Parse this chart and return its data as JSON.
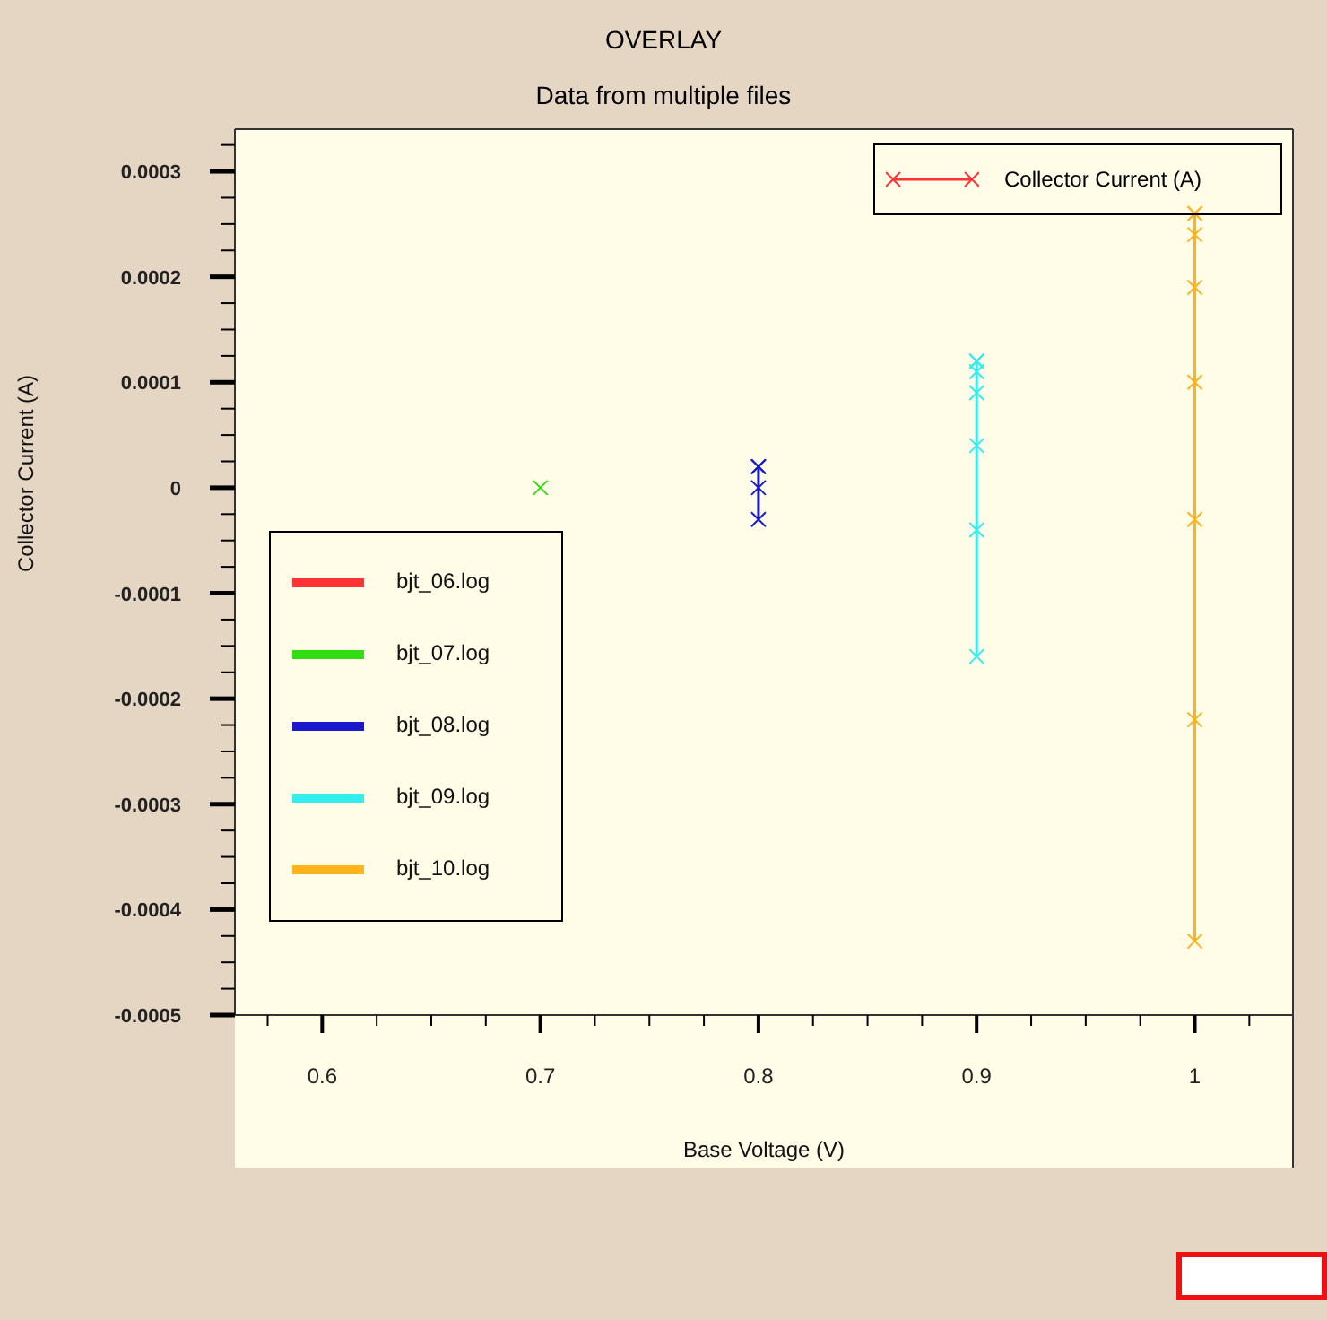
{
  "chart_data": {
    "type": "line",
    "title": "OVERLAY",
    "subtitle": "Data from multiple files",
    "xlabel": "Base Voltage (V)",
    "ylabel": "Collector Current (A)",
    "legend_title": "Collector Current (A)",
    "series": [
      {
        "name": "bjt_06.log",
        "color": "#ff3333"
      },
      {
        "name": "bjt_07.log",
        "color": "#33dd11",
        "x": [
          0.7
        ],
        "values": [
          0
        ]
      },
      {
        "name": "bjt_08.log",
        "color": "#1a1acc",
        "x": [
          0.8,
          0.8,
          0.8,
          0.8,
          0.8
        ],
        "values": [
          2e-05,
          2e-05,
          2e-05,
          0,
          -3e-05
        ]
      },
      {
        "name": "bjt_09.log",
        "color": "#33eeee",
        "x": [
          0.9,
          0.9,
          0.9,
          0.9,
          0.9,
          0.9,
          0.9
        ],
        "values": [
          0.00012,
          0.00012,
          0.00011,
          9e-05,
          4e-05,
          -4e-05,
          -0.00016
        ]
      },
      {
        "name": "bjt_10.log",
        "color": "#ffb31a",
        "x": [
          1,
          1,
          1,
          1,
          1,
          1,
          1,
          1
        ],
        "values": [
          0.00026,
          0.00026,
          0.00024,
          0.00019,
          0.0001,
          -3e-05,
          -0.00022,
          -0.00043
        ]
      }
    ],
    "xlim": [
      0.56,
      1.045
    ],
    "xticks": [
      {
        "value": 0.575,
        "label": null
      },
      0.6,
      {
        "value": 0.625,
        "label": null
      },
      {
        "value": 0.65,
        "label": null
      },
      {
        "value": 0.675,
        "label": null
      },
      0.7,
      {
        "value": 0.725,
        "label": null
      },
      {
        "value": 0.75,
        "label": null
      },
      {
        "value": 0.775,
        "label": null
      },
      0.8,
      {
        "value": 0.825,
        "label": null
      },
      {
        "value": 0.85,
        "label": null
      },
      {
        "value": 0.875,
        "label": null
      },
      0.9,
      {
        "value": 0.925,
        "label": null
      },
      {
        "value": 0.95,
        "label": null
      },
      {
        "value": 0.975,
        "label": null
      },
      1,
      {
        "value": 1.025,
        "label": null
      }
    ],
    "ylim": [
      -0.0005,
      0.00034
    ],
    "yticks": [
      -0.0005,
      {
        "value": -0.000475,
        "label": null
      },
      {
        "value": -0.00045,
        "label": null
      },
      {
        "value": -0.000425,
        "label": null
      },
      -0.0004,
      {
        "value": -0.000375,
        "label": null
      },
      {
        "value": -0.00035,
        "label": null
      },
      {
        "value": -0.000325,
        "label": null
      },
      -0.0003,
      {
        "value": -0.000275,
        "label": null
      },
      {
        "value": -0.00025,
        "label": null
      },
      {
        "value": -0.000225,
        "label": null
      },
      -0.0002,
      {
        "value": -0.000175,
        "label": null
      },
      {
        "value": -0.00015,
        "label": null
      },
      {
        "value": -0.000125,
        "label": null
      },
      -0.0001,
      {
        "value": -7.5e-05,
        "label": null
      },
      {
        "value": -5e-05,
        "label": null
      },
      {
        "value": -2.5e-05,
        "label": null
      },
      0,
      {
        "value": 2.5e-05,
        "label": null
      },
      {
        "value": 5e-05,
        "label": null
      },
      {
        "value": 7.5e-05,
        "label": null
      },
      0.0001,
      {
        "value": 0.000125,
        "label": null
      },
      {
        "value": 0.00015,
        "label": null
      },
      {
        "value": 0.000175,
        "label": null
      },
      0.0002,
      {
        "value": 0.000225,
        "label": null
      },
      {
        "value": 0.00025,
        "label": null
      },
      {
        "value": 0.000275,
        "label": null
      },
      0.0003,
      {
        "value": 0.000325,
        "label": null
      }
    ],
    "grid": false,
    "legend": "left",
    "marker": "cross",
    "line_style": "solid"
  }
}
